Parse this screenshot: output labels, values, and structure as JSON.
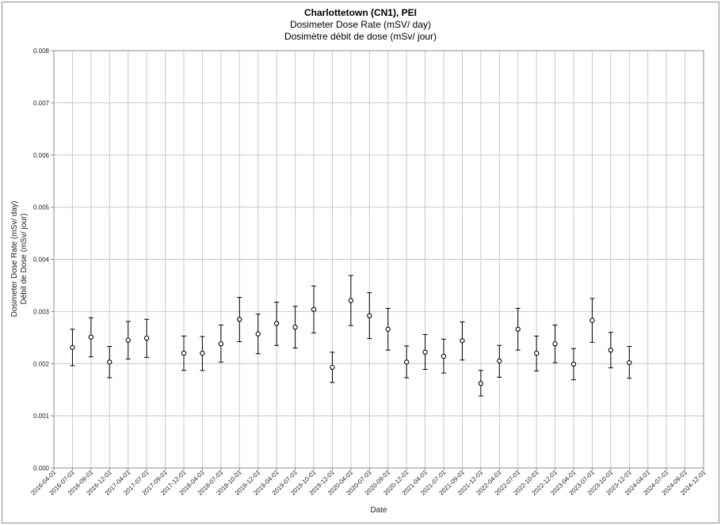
{
  "chart_data": {
    "type": "scatter",
    "title": "Charlottetown (CN1), PEI",
    "subtitle_en": "Dosimeter Dose Rate (mSV/ day)",
    "subtitle_fr": "Dosimètre débit de dose (mSv/ jour)",
    "xlabel": "Date",
    "ylabel_en": "Dosimeter Dose Rate (mSv/ day)",
    "ylabel_fr": "Débit de Dose (mSv/ jour)",
    "ylim": [
      0,
      0.008
    ],
    "y_ticks": [
      "0.000",
      "0.001",
      "0.002",
      "0.003",
      "0.004",
      "0.005",
      "0.006",
      "0.007",
      "0.008"
    ],
    "x_ticks": [
      "2016-04-01",
      "2016-07-01",
      "2016-09-01",
      "2016-12-01",
      "2017-04-01",
      "2017-07-01",
      "2017-09-01",
      "2017-12-01",
      "2018-04-01",
      "2018-07-01",
      "2018-10-01",
      "2018-12-01",
      "2019-04-01",
      "2019-07-01",
      "2019-10-01",
      "2019-12-01",
      "2020-04-01",
      "2020-07-01",
      "2020-09-01",
      "2020-12-01",
      "2021-04-01",
      "2021-07-01",
      "2021-09-01",
      "2021-12-01",
      "2022-04-01",
      "2022-07-01",
      "2022-10-01",
      "2022-12-01",
      "2023-04-01",
      "2023-07-01",
      "2023-10-01",
      "2023-12-01",
      "2024-04-01",
      "2024-07-01",
      "2024-09-01",
      "2024-12-01"
    ],
    "grid": true,
    "series": [
      {
        "marker": "open-circle",
        "error_bars": true,
        "points": [
          {
            "x": "2016-07-01",
            "y": 0.00231,
            "low": 0.00196,
            "high": 0.00266
          },
          {
            "x": "2016-09-01",
            "y": 0.00251,
            "low": 0.00213,
            "high": 0.00288
          },
          {
            "x": "2016-12-01",
            "y": 0.00203,
            "low": 0.00173,
            "high": 0.00233
          },
          {
            "x": "2017-04-01",
            "y": 0.00245,
            "low": 0.00209,
            "high": 0.00281
          },
          {
            "x": "2017-07-01",
            "y": 0.00249,
            "low": 0.00212,
            "high": 0.00285
          },
          {
            "x": "2017-12-01",
            "y": 0.0022,
            "low": 0.00187,
            "high": 0.00253
          },
          {
            "x": "2018-04-01",
            "y": 0.0022,
            "low": 0.00187,
            "high": 0.00252
          },
          {
            "x": "2018-07-01",
            "y": 0.00238,
            "low": 0.00203,
            "high": 0.00274
          },
          {
            "x": "2018-10-01",
            "y": 0.00285,
            "low": 0.00242,
            "high": 0.00327
          },
          {
            "x": "2018-12-01",
            "y": 0.00257,
            "low": 0.00219,
            "high": 0.00295
          },
          {
            "x": "2019-04-01",
            "y": 0.00277,
            "low": 0.00235,
            "high": 0.00318
          },
          {
            "x": "2019-07-01",
            "y": 0.0027,
            "low": 0.0023,
            "high": 0.0031
          },
          {
            "x": "2019-10-01",
            "y": 0.00304,
            "low": 0.00259,
            "high": 0.00349
          },
          {
            "x": "2019-12-01",
            "y": 0.00193,
            "low": 0.00164,
            "high": 0.00222
          },
          {
            "x": "2020-04-01",
            "y": 0.00321,
            "low": 0.00273,
            "high": 0.00369
          },
          {
            "x": "2020-07-01",
            "y": 0.00292,
            "low": 0.00248,
            "high": 0.00336
          },
          {
            "x": "2020-09-01",
            "y": 0.00266,
            "low": 0.00226,
            "high": 0.00306
          },
          {
            "x": "2020-12-01",
            "y": 0.00203,
            "low": 0.00173,
            "high": 0.00234
          },
          {
            "x": "2021-04-01",
            "y": 0.00222,
            "low": 0.00189,
            "high": 0.00256
          },
          {
            "x": "2021-07-01",
            "y": 0.00214,
            "low": 0.00182,
            "high": 0.00247
          },
          {
            "x": "2021-09-01",
            "y": 0.00244,
            "low": 0.00207,
            "high": 0.0028
          },
          {
            "x": "2021-12-01",
            "y": 0.00162,
            "low": 0.00138,
            "high": 0.00187
          },
          {
            "x": "2022-04-01",
            "y": 0.00205,
            "low": 0.00174,
            "high": 0.00235
          },
          {
            "x": "2022-07-01",
            "y": 0.00266,
            "low": 0.00226,
            "high": 0.00306
          },
          {
            "x": "2022-10-01",
            "y": 0.0022,
            "low": 0.00186,
            "high": 0.00253
          },
          {
            "x": "2022-12-01",
            "y": 0.00238,
            "low": 0.00202,
            "high": 0.00274
          },
          {
            "x": "2023-04-01",
            "y": 0.00199,
            "low": 0.00169,
            "high": 0.00229
          },
          {
            "x": "2023-07-01",
            "y": 0.00283,
            "low": 0.00241,
            "high": 0.00325
          },
          {
            "x": "2023-10-01",
            "y": 0.00226,
            "low": 0.00192,
            "high": 0.0026
          },
          {
            "x": "2023-12-01",
            "y": 0.00202,
            "low": 0.00172,
            "high": 0.00233
          }
        ]
      }
    ]
  }
}
